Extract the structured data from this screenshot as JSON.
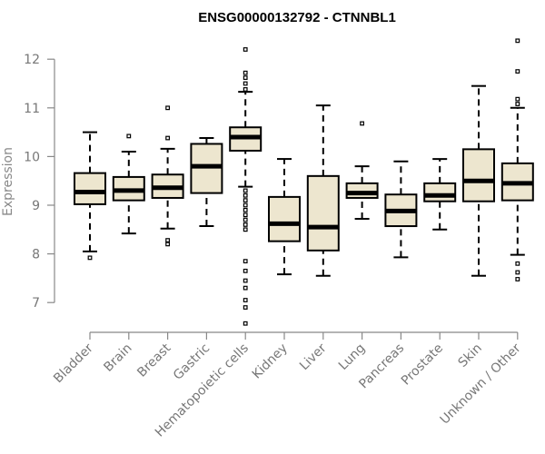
{
  "chart_data": {
    "type": "box",
    "title": "ENSG00000132792 - CTNNBL1",
    "xlabel": "",
    "ylabel": "Expression",
    "ylim": [
      6.6,
      12.3
    ],
    "yticks": [
      7,
      8,
      9,
      10,
      11,
      12
    ],
    "grid": false,
    "legend": "none",
    "box_color": "#ede6cf",
    "categories": [
      "Bladder",
      "Brain",
      "Breast",
      "Gastric",
      "Hematopoietic cells",
      "Kidney",
      "Liver",
      "Lung",
      "Pancreas",
      "Prostate",
      "Skin",
      "Unknown / Other"
    ],
    "boxes": [
      {
        "category": "Bladder",
        "min": 8.05,
        "q1": 9.02,
        "median": 9.27,
        "q3": 9.66,
        "max": 10.5,
        "outliers": [
          7.92
        ]
      },
      {
        "category": "Brain",
        "min": 8.42,
        "q1": 9.1,
        "median": 9.3,
        "q3": 9.58,
        "max": 10.1,
        "outliers": [
          10.42
        ]
      },
      {
        "category": "Breast",
        "min": 8.52,
        "q1": 9.15,
        "median": 9.36,
        "q3": 9.63,
        "max": 10.16,
        "outliers": [
          8.2,
          8.28,
          10.38,
          11.0
        ]
      },
      {
        "category": "Gastric",
        "min": 8.57,
        "q1": 9.25,
        "median": 9.8,
        "q3": 10.26,
        "max": 10.38,
        "outliers": []
      },
      {
        "category": "Hematopoietic cells",
        "min": 9.38,
        "q1": 10.12,
        "median": 10.4,
        "q3": 10.6,
        "max": 11.33,
        "outliers": [
          6.57,
          6.9,
          7.05,
          7.3,
          7.45,
          7.65,
          7.85,
          8.5,
          8.6,
          8.7,
          8.8,
          8.9,
          9.0,
          9.1,
          9.2,
          9.3,
          11.38,
          11.5,
          11.62,
          11.72,
          12.2
        ]
      },
      {
        "category": "Kidney",
        "min": 7.58,
        "q1": 8.26,
        "median": 8.62,
        "q3": 9.17,
        "max": 9.95,
        "outliers": []
      },
      {
        "category": "Liver",
        "min": 7.55,
        "q1": 8.07,
        "median": 8.55,
        "q3": 9.6,
        "max": 11.05,
        "outliers": []
      },
      {
        "category": "Lung",
        "min": 8.72,
        "q1": 9.15,
        "median": 9.25,
        "q3": 9.45,
        "max": 9.8,
        "outliers": [
          10.68
        ]
      },
      {
        "category": "Pancreas",
        "min": 7.93,
        "q1": 8.57,
        "median": 8.88,
        "q3": 9.22,
        "max": 9.9,
        "outliers": []
      },
      {
        "category": "Prostate",
        "min": 8.5,
        "q1": 9.08,
        "median": 9.2,
        "q3": 9.45,
        "max": 9.95,
        "outliers": []
      },
      {
        "category": "Skin",
        "min": 7.55,
        "q1": 9.08,
        "median": 9.5,
        "q3": 10.15,
        "max": 11.45,
        "outliers": []
      },
      {
        "category": "Unknown / Other",
        "min": 7.98,
        "q1": 9.1,
        "median": 9.45,
        "q3": 9.86,
        "max": 11.0,
        "outliers": [
          7.48,
          7.62,
          7.8,
          11.08,
          11.18,
          11.75,
          12.38
        ]
      }
    ]
  }
}
